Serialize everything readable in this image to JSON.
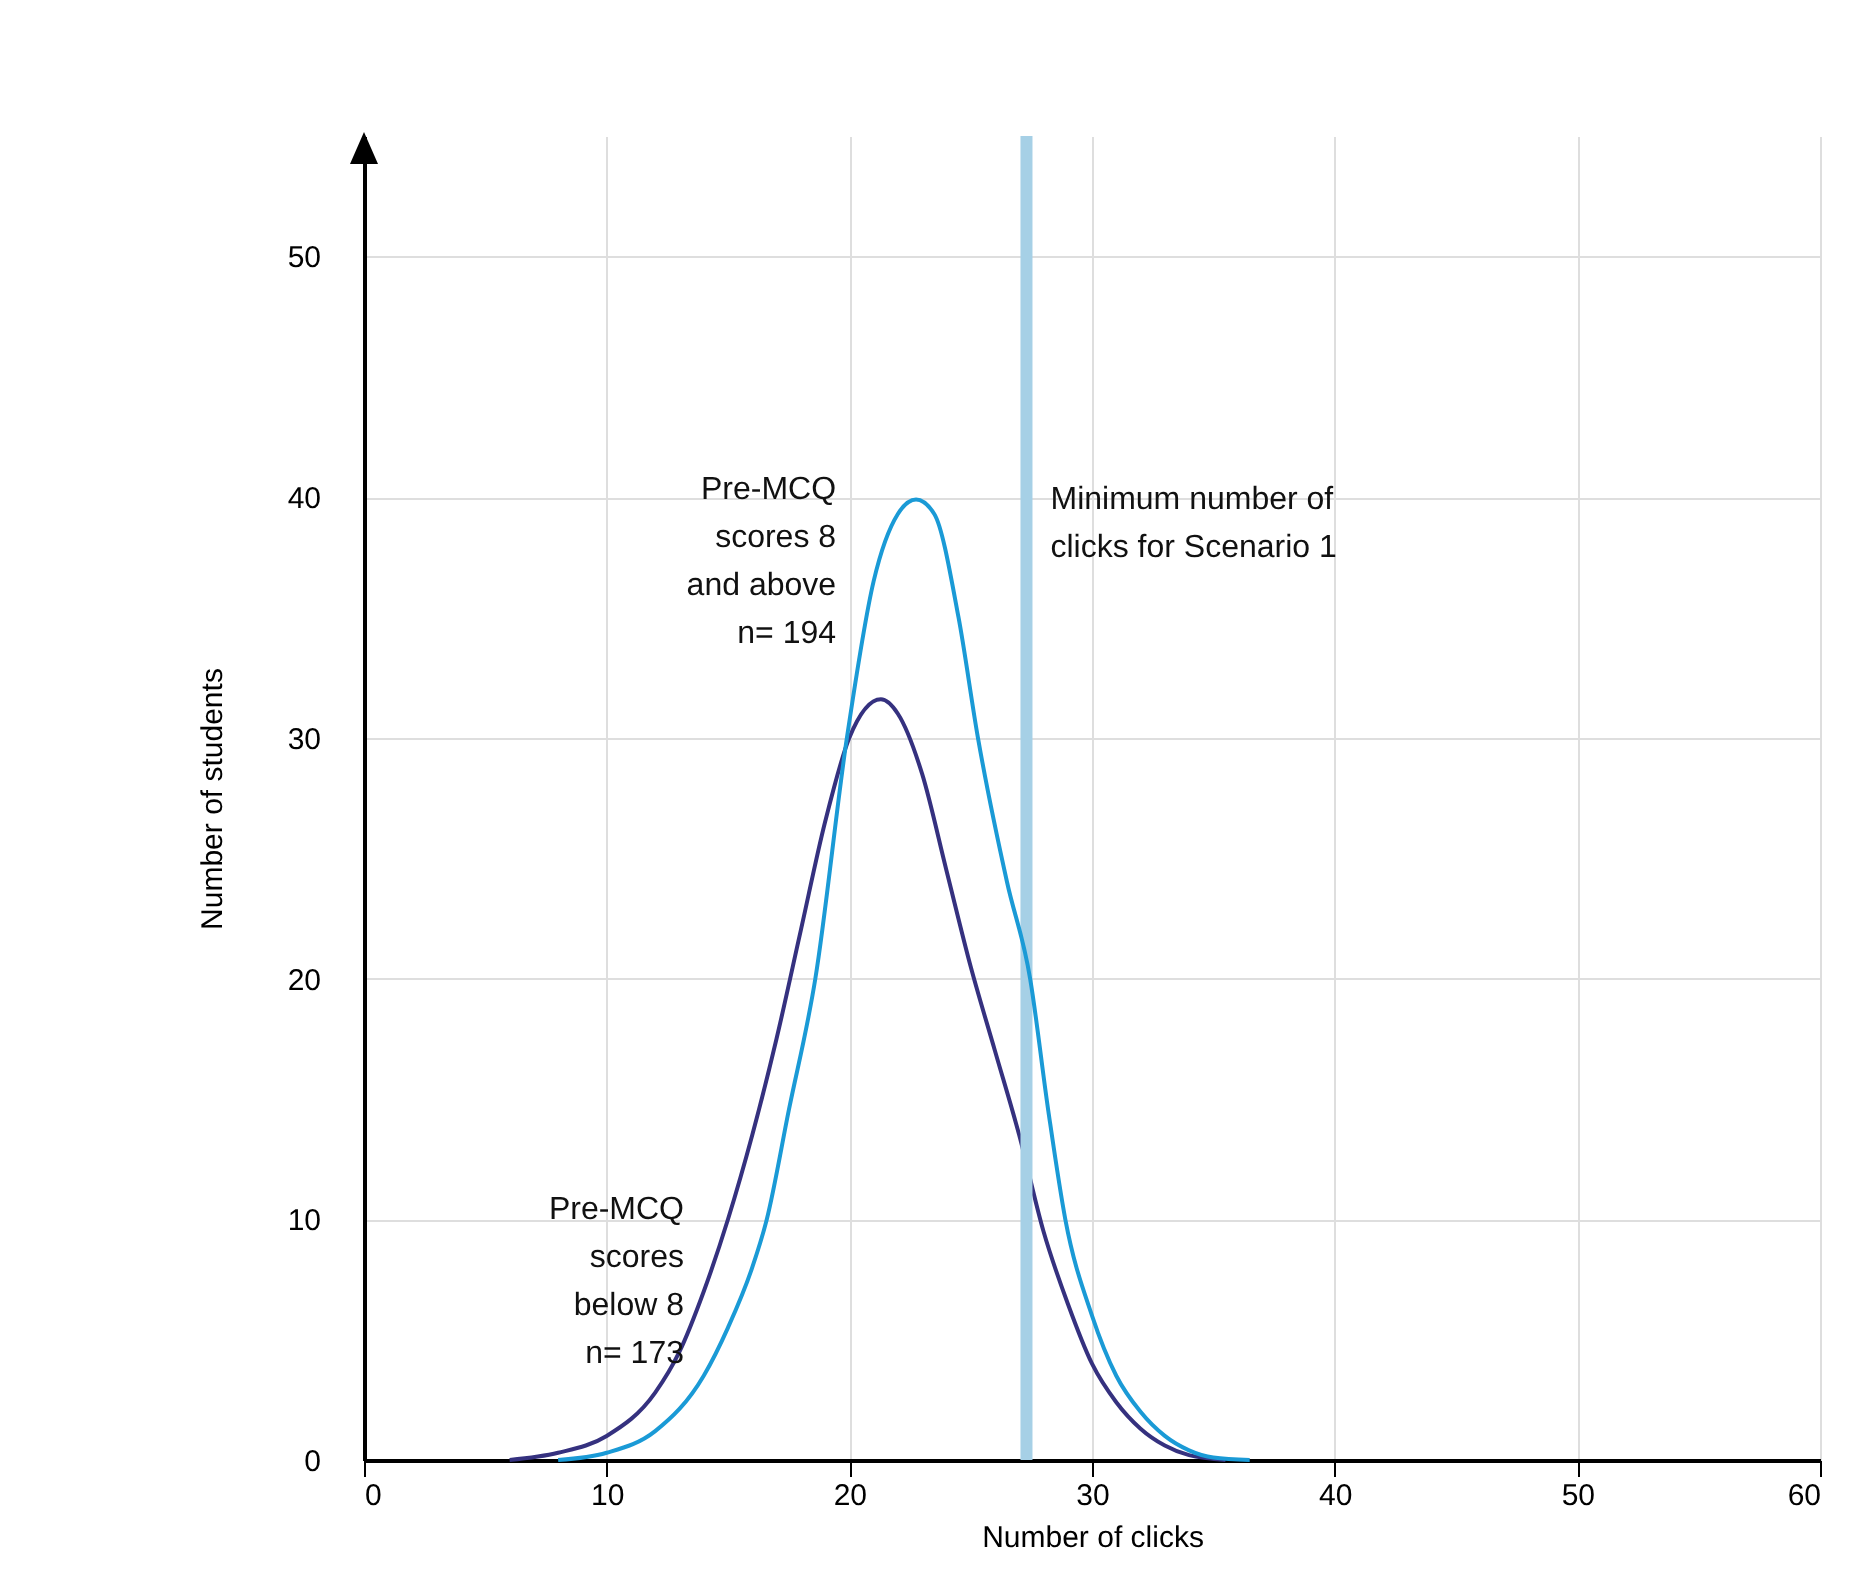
{
  "chart_data": {
    "type": "line",
    "xlabel": "Number of clicks",
    "ylabel": "Number of students",
    "x": [
      6,
      8,
      10,
      12,
      13,
      14,
      15,
      16,
      17,
      18,
      19,
      20,
      21.3,
      22,
      23,
      24,
      25,
      26,
      27,
      28,
      29,
      30,
      31,
      32,
      33,
      34,
      35.5
    ],
    "series": [
      {
        "name": "Pre-MCQ scores below 8 n= 173",
        "color": "#35317f",
        "values": [
          0,
          0.3,
          1,
          2.8,
          4.5,
          7,
          10,
          13.5,
          17.5,
          22,
          26.5,
          30,
          31.6,
          31,
          28.5,
          24.5,
          20.5,
          17,
          13.5,
          9.5,
          6.5,
          4,
          2.4,
          1.3,
          0.6,
          0.2,
          0
        ]
      },
      {
        "name": "Pre-MCQ scores 8 and above n= 194",
        "color": "#1a9ad6",
        "x": [
          8,
          10,
          12,
          14,
          15,
          16,
          16.6,
          17.5,
          18.6,
          19.9,
          21,
          22,
          22.75,
          23.5,
          24.5,
          25.3,
          26.5,
          27.45,
          28.2,
          28.9,
          30,
          31,
          32,
          33,
          34,
          35,
          36.5
        ],
        "values": [
          0,
          0.3,
          1.2,
          3.5,
          5.5,
          8,
          10,
          14.5,
          20,
          30,
          36.5,
          39.3,
          39.9,
          39.3,
          35,
          30,
          24,
          20,
          14.5,
          10,
          6,
          3.5,
          2,
          1,
          0.4,
          0.1,
          0
        ]
      }
    ],
    "xlim": [
      0,
      60
    ],
    "xticks": [
      0,
      10,
      20,
      30,
      40,
      50,
      60
    ],
    "ylim": [
      0,
      55
    ],
    "yticks": [
      0,
      10,
      20,
      30,
      40,
      50
    ],
    "grid": true,
    "ref_lines": [
      {
        "axis": "x",
        "value": 27.3,
        "label": "Minimum number of clicks for Scenario 1",
        "color": "#a6d0e6"
      }
    ]
  }
}
